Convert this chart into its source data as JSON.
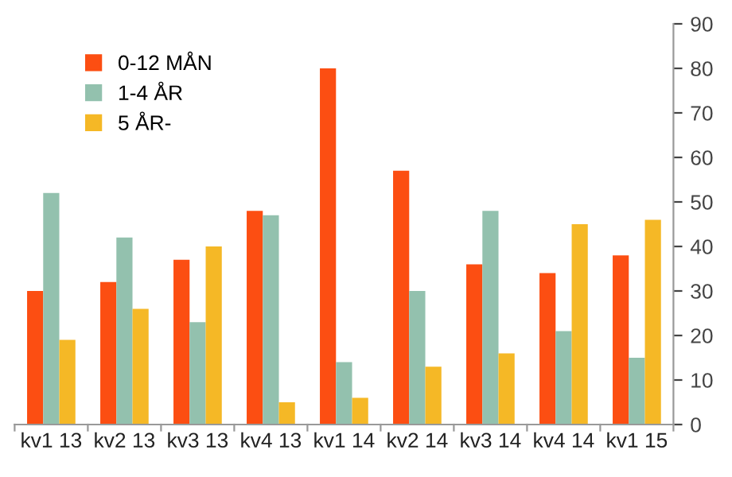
{
  "chart_data": {
    "type": "bar",
    "categories": [
      "kv1 13",
      "kv2 13",
      "kv3 13",
      "kv4 13",
      "kv1 14",
      "kv2 14",
      "kv3 14",
      "kv4 14",
      "kv1 15"
    ],
    "series": [
      {
        "name": "0-12 MÅN",
        "color": "#fc4e12",
        "values": [
          30,
          32,
          37,
          48,
          80,
          57,
          36,
          34,
          38
        ]
      },
      {
        "name": "1-4 ÅR",
        "color": "#93c1ae",
        "values": [
          52,
          42,
          23,
          47,
          14,
          30,
          48,
          21,
          15
        ]
      },
      {
        "name": "5 ÅR-",
        "color": "#f5b826",
        "values": [
          19,
          26,
          40,
          5,
          6,
          13,
          16,
          45,
          46
        ]
      }
    ],
    "ylim": [
      0,
      90
    ],
    "yticks": [
      0,
      10,
      20,
      30,
      40,
      50,
      60,
      70,
      80,
      90
    ],
    "grid": false,
    "legend": "top left"
  }
}
